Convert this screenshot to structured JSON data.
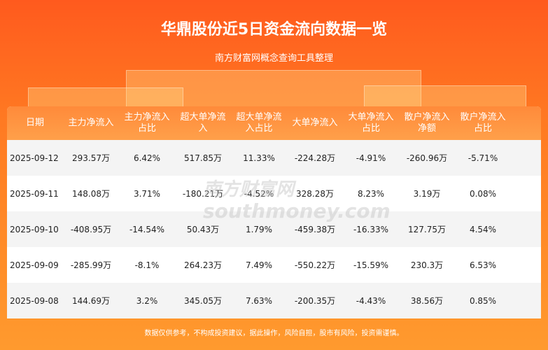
{
  "header": {
    "title": "华鼎股份近5日资金流向数据一览",
    "subtitle": "南方财富网概念查询工具整理"
  },
  "table": {
    "columns": [
      "日期",
      "主力净流入",
      "主力净流入占比",
      "超大单净流入",
      "超大单净流入占比",
      "大单净流入",
      "大单净流入占比",
      "散户净流入净额",
      "散户净流入占比"
    ],
    "rows": [
      [
        "2025-09-12",
        "293.57万",
        "6.42%",
        "517.85万",
        "11.33%",
        "-224.28万",
        "-4.91%",
        "-260.96万",
        "-5.71%"
      ],
      [
        "2025-09-11",
        "148.08万",
        "3.71%",
        "-180.21万",
        "-4.52%",
        "328.28万",
        "8.23%",
        "3.19万",
        "0.08%"
      ],
      [
        "2025-09-10",
        "-408.95万",
        "-14.54%",
        "50.43万",
        "1.79%",
        "-459.38万",
        "-16.33%",
        "127.75万",
        "4.54%"
      ],
      [
        "2025-09-09",
        "-285.99万",
        "-8.1%",
        "264.23万",
        "7.49%",
        "-550.22万",
        "-15.59%",
        "230.3万",
        "6.53%"
      ],
      [
        "2025-09-08",
        "144.69万",
        "3.2%",
        "345.05万",
        "7.63%",
        "-200.35万",
        "-4.43%",
        "38.56万",
        "0.85%"
      ]
    ]
  },
  "watermark": {
    "name": "南方财富网",
    "url": "southmoney.com"
  },
  "footer": "数据仅供参考，不构成投资建议，据此操作，风险自担，股市有风险，投资需谨慎。"
}
